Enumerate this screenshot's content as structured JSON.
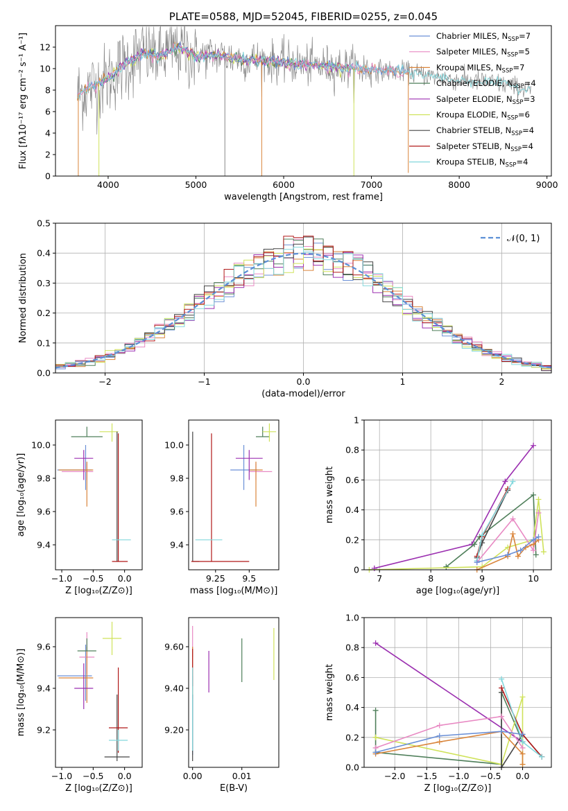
{
  "colors": {
    "chabrier_miles": "#6a8fd6",
    "salpeter_miles": "#e889c3",
    "kroupa_miles": "#d9843a",
    "chabrier_elodie": "#4f7f5a",
    "salpeter_elodie": "#9b2fb0",
    "kroupa_elodie": "#cfe25a",
    "chabrier_stelib": "#444444",
    "salpeter_stelib": "#b01818",
    "kroupa_stelib": "#82d7dc",
    "data_spectrum": "#888888",
    "normal_curve": "#5b8fd6"
  },
  "chart_data": [
    {
      "id": "spectrum",
      "type": "line",
      "title": "PLATE=0588, MJD=52045, FIBERID=0255, z=0.045",
      "xlabel": "wavelength [Angstrom, rest frame]",
      "ylabel": "Flux [fλ10⁻¹⁷ erg cm⁻² s⁻¹ A⁻¹]",
      "xlim": [
        3400,
        9050
      ],
      "ylim": [
        0,
        14
      ],
      "xticks": [
        4000,
        5000,
        6000,
        7000,
        8000,
        9000
      ],
      "yticks": [
        0,
        2,
        4,
        6,
        8,
        10,
        12
      ],
      "grid": false,
      "legend_position": "right",
      "legend": [
        "Chabrier MILES, N_SSP=7",
        "Salpeter MILES, N_SSP=5",
        "Kroupa MILES, N_SSP=7",
        "Chabrier ELODIE, N_SSP=4",
        "Salpeter ELODIE, N_SSP=3",
        "Kroupa ELODIE, N_SSP=6",
        "Chabrier STELIB, N_SSP=4",
        "Salpeter STELIB, N_SSP=4",
        "Kroupa STELIB, N_SSP=4"
      ],
      "continuum": [
        [
          3650,
          7.6
        ],
        [
          3800,
          8.2
        ],
        [
          4000,
          9.0
        ],
        [
          4200,
          10.5
        ],
        [
          4400,
          11.4
        ],
        [
          4600,
          11.2
        ],
        [
          4800,
          12.0
        ],
        [
          5000,
          11.1
        ],
        [
          5200,
          11.3
        ],
        [
          5500,
          10.9
        ],
        [
          6000,
          10.6
        ],
        [
          6300,
          10.3
        ],
        [
          6600,
          10.2
        ],
        [
          7000,
          9.9
        ],
        [
          7400,
          9.7
        ],
        [
          7700,
          9.3
        ],
        [
          8000,
          8.9
        ],
        [
          8300,
          8.8
        ],
        [
          8600,
          8.4
        ],
        [
          8800,
          8.0
        ]
      ],
      "data_range": [
        3650,
        8820
      ],
      "model_ranges": [
        {
          "series": "miles",
          "x": [
            3650,
            7420
          ]
        },
        {
          "series": "elodie",
          "x": [
            3900,
            6800
          ]
        },
        {
          "series": "stelib",
          "x": [
            3650,
            8820
          ]
        }
      ],
      "drops": [
        {
          "x": 3660,
          "y": 0.0
        },
        {
          "x": 3895,
          "y": 0.0
        },
        {
          "x": 5330,
          "y": 0.0
        },
        {
          "x": 5750,
          "y": 0.0
        },
        {
          "x": 6800,
          "y": 0.0
        },
        {
          "x": 7420,
          "y": 0.3
        }
      ]
    },
    {
      "id": "residuals",
      "type": "line",
      "xlabel": "(data-model)/error",
      "ylabel": "Normed distribution",
      "xlim": [
        -2.5,
        2.5
      ],
      "ylim": [
        0,
        0.5
      ],
      "xticks": [
        -2,
        -1,
        0,
        1,
        2
      ],
      "yticks": [
        0.0,
        0.1,
        0.2,
        0.3,
        0.4,
        0.5
      ],
      "grid": true,
      "legend_position": "top-right",
      "legend": [
        "𝒩(0, 1)"
      ],
      "bin_width": 0.1,
      "histograms_seed_mean": "standard normal"
    },
    {
      "id": "age_vs_Z",
      "type": "scatter",
      "xlabel": "Z [log₁₀(Z/Z⊙)]",
      "ylabel": "age  [log₁₀(age/yr)]",
      "xlim": [
        -1.1,
        0.28
      ],
      "ylim": [
        9.25,
        10.15
      ],
      "xticks": [
        -1.0,
        -0.5,
        0.0
      ],
      "yticks": [
        9.4,
        9.6,
        9.8,
        10.0
      ],
      "points": [
        {
          "s": "chabrier_miles",
          "x": -0.62,
          "y": 9.85,
          "xe": [
            0.45,
            0.1
          ],
          "ye": [
            0.12,
            0.15
          ]
        },
        {
          "s": "salpeter_miles",
          "x": -0.6,
          "y": 9.84,
          "xe": [
            0.4,
            0.1
          ],
          "ye": [
            0.05,
            0.05
          ]
        },
        {
          "s": "kroupa_miles",
          "x": -0.6,
          "y": 9.85,
          "xe": [
            0.45,
            0.1
          ],
          "ye": [
            0.22,
            0.05
          ]
        },
        {
          "s": "chabrier_elodie",
          "x": -0.6,
          "y": 10.05,
          "xe": [
            0.25,
            0.25
          ],
          "ye": [
            0.0,
            0.06
          ]
        },
        {
          "s": "salpeter_elodie",
          "x": -0.65,
          "y": 9.92,
          "xe": [
            0.15,
            0.15
          ],
          "ye": [
            0.13,
            0.05
          ]
        },
        {
          "s": "kroupa_elodie",
          "x": -0.2,
          "y": 10.08,
          "xe": [
            0.2,
            0.1
          ],
          "ye": [
            0.06,
            0.05
          ]
        },
        {
          "s": "chabrier_stelib",
          "x": -0.12,
          "y": 9.3,
          "xe": [
            0.0,
            0.0
          ],
          "ye": [
            0.0,
            0.78
          ]
        },
        {
          "s": "salpeter_stelib",
          "x": -0.1,
          "y": 9.3,
          "xe": [
            0.1,
            0.15
          ],
          "ye": [
            0.0,
            0.77
          ]
        },
        {
          "s": "kroupa_stelib",
          "x": -0.1,
          "y": 9.43,
          "xe": [
            0.1,
            0.2
          ],
          "ye": [
            0.0,
            0.0
          ]
        }
      ]
    },
    {
      "id": "age_vs_mass",
      "type": "scatter",
      "xlabel": "mass [log₁₀(M/M⊙)]",
      "ylabel": "",
      "xlim": [
        9.05,
        9.72
      ],
      "ylim": [
        9.25,
        10.15
      ],
      "xticks": [
        9.25,
        9.5
      ],
      "yticks": [
        9.4,
        9.6,
        9.8,
        10.0
      ],
      "points": [
        {
          "s": "chabrier_miles",
          "x": 9.46,
          "y": 9.85,
          "xe": [
            0.1,
            0.1
          ],
          "ye": [
            0.12,
            0.15
          ]
        },
        {
          "s": "salpeter_miles",
          "x": 9.55,
          "y": 9.84,
          "xe": [
            0.05,
            0.12
          ],
          "ye": [
            0.05,
            0.05
          ]
        },
        {
          "s": "kroupa_miles",
          "x": 9.55,
          "y": 9.85,
          "xe": [
            0.05,
            0.05
          ],
          "ye": [
            0.22,
            0.05
          ]
        },
        {
          "s": "chabrier_elodie",
          "x": 9.6,
          "y": 10.05,
          "xe": [
            0.05,
            0.05
          ],
          "ye": [
            0.0,
            0.06
          ]
        },
        {
          "s": "salpeter_elodie",
          "x": 9.5,
          "y": 9.92,
          "xe": [
            0.1,
            0.1
          ],
          "ye": [
            0.13,
            0.05
          ]
        },
        {
          "s": "kroupa_elodie",
          "x": 9.65,
          "y": 10.08,
          "xe": [
            0.05,
            0.05
          ],
          "ye": [
            0.06,
            0.05
          ]
        },
        {
          "s": "chabrier_stelib",
          "x": 9.08,
          "y": 9.3,
          "xe": [
            0.0,
            0.05
          ],
          "ye": [
            0.0,
            0.78
          ]
        },
        {
          "s": "salpeter_stelib",
          "x": 9.22,
          "y": 9.3,
          "xe": [
            0.15,
            0.28
          ],
          "ye": [
            0.0,
            0.77
          ]
        },
        {
          "s": "kroupa_stelib",
          "x": 9.15,
          "y": 9.43,
          "xe": [
            0.05,
            0.15
          ],
          "ye": [
            0.0,
            0.0
          ]
        }
      ]
    },
    {
      "id": "weight_vs_age",
      "type": "line",
      "xlabel": "age  [log₁₀(age/yr)]",
      "ylabel": "mass weight",
      "xlim": [
        6.7,
        10.35
      ],
      "ylim": [
        0,
        1
      ],
      "xticks": [
        7,
        8,
        9,
        10
      ],
      "yticks": [
        0.0,
        0.2,
        0.4,
        0.6,
        0.8,
        1.0
      ],
      "grid": true,
      "series": [
        {
          "s": "salpeter_elodie",
          "x": [
            6.9,
            8.8,
            9.45,
            10.0
          ],
          "y": [
            0.01,
            0.17,
            0.59,
            0.83
          ]
        },
        {
          "s": "chabrier_elodie",
          "x": [
            8.3,
            8.85,
            8.95,
            10.0,
            10.05
          ],
          "y": [
            0.02,
            0.17,
            0.22,
            0.5,
            0.1
          ]
        },
        {
          "s": "chabrier_stelib",
          "x": [
            8.9,
            9.0,
            9.5
          ],
          "y": [
            0.08,
            0.18,
            0.53
          ]
        },
        {
          "s": "salpeter_stelib",
          "x": [
            8.9,
            9.0,
            9.5
          ],
          "y": [
            0.09,
            0.22,
            0.54
          ]
        },
        {
          "s": "kroupa_stelib",
          "x": [
            8.9,
            9.0,
            9.6
          ],
          "y": [
            0.06,
            0.23,
            0.59
          ]
        },
        {
          "s": "kroupa_elodie",
          "x": [
            6.8,
            9.0,
            9.5,
            10.0,
            10.1,
            10.2
          ],
          "y": [
            0.0,
            0.02,
            0.15,
            0.2,
            0.47,
            0.12
          ]
        },
        {
          "s": "salpeter_miles",
          "x": [
            8.9,
            9.6,
            10.0,
            10.1
          ],
          "y": [
            0.05,
            0.34,
            0.13,
            0.38
          ]
        },
        {
          "s": "kroupa_miles",
          "x": [
            8.9,
            9.5,
            9.6,
            9.7,
            9.85,
            10.0,
            10.1
          ],
          "y": [
            0.0,
            0.09,
            0.24,
            0.09,
            0.15,
            0.17,
            0.2
          ]
        },
        {
          "s": "chabrier_miles",
          "x": [
            8.9,
            9.5,
            9.75,
            10.0,
            10.1
          ],
          "y": [
            0.05,
            0.1,
            0.13,
            0.2,
            0.22
          ]
        }
      ]
    },
    {
      "id": "mass_vs_Z",
      "type": "scatter",
      "xlabel": "Z [log₁₀(Z/Z⊙)]",
      "ylabel": "mass [log₁₀(M/M⊙)]",
      "xlim": [
        -1.1,
        0.28
      ],
      "ylim": [
        9.02,
        9.74
      ],
      "xticks": [
        -1.0,
        -0.5,
        0.0
      ],
      "yticks": [
        9.2,
        9.4,
        9.6
      ],
      "points": [
        {
          "s": "chabrier_miles",
          "x": -0.62,
          "y": 9.46,
          "xe": [
            0.45,
            0.1
          ],
          "ye": [
            0.12,
            0.15
          ]
        },
        {
          "s": "salpeter_miles",
          "x": -0.6,
          "y": 9.55,
          "xe": [
            0.12,
            0.12
          ],
          "ye": [
            0.08,
            0.12
          ]
        },
        {
          "s": "kroupa_miles",
          "x": -0.6,
          "y": 9.45,
          "xe": [
            0.45,
            0.1
          ],
          "ye": [
            0.12,
            0.15
          ]
        },
        {
          "s": "chabrier_elodie",
          "x": -0.6,
          "y": 9.58,
          "xe": [
            0.15,
            0.15
          ],
          "ye": [
            0.0,
            0.06
          ]
        },
        {
          "s": "salpeter_elodie",
          "x": -0.65,
          "y": 9.4,
          "xe": [
            0.15,
            0.15
          ],
          "ye": [
            0.1,
            0.12
          ]
        },
        {
          "s": "kroupa_elodie",
          "x": -0.2,
          "y": 9.64,
          "xe": [
            0.15,
            0.15
          ],
          "ye": [
            0.08,
            0.08
          ]
        },
        {
          "s": "chabrier_stelib",
          "x": -0.12,
          "y": 9.07,
          "xe": [
            0.2,
            0.2
          ],
          "ye": [
            0.02,
            0.3
          ]
        },
        {
          "s": "salpeter_stelib",
          "x": -0.1,
          "y": 9.21,
          "xe": [
            0.15,
            0.15
          ],
          "ye": [
            0.12,
            0.29
          ]
        },
        {
          "s": "kroupa_stelib",
          "x": -0.1,
          "y": 9.15,
          "xe": [
            0.15,
            0.15
          ],
          "ye": [
            0.05,
            0.05
          ]
        }
      ]
    },
    {
      "id": "mass_vs_ebv",
      "type": "scatter",
      "xlabel": "E(B-V)",
      "ylabel": "",
      "xlim": [
        -0.0008,
        0.0175
      ],
      "ylim": [
        9.02,
        9.74
      ],
      "xticks": [
        0.0,
        0.01
      ],
      "yticks": [
        9.2,
        9.4,
        9.6
      ],
      "points": [
        {
          "s": "chabrier_miles",
          "x": 0.0,
          "y": 9.46,
          "ye": [
            0.38,
            0.0
          ]
        },
        {
          "s": "salpeter_miles",
          "x": 0.0,
          "y": 9.55,
          "ye": [
            0.0,
            0.15
          ]
        },
        {
          "s": "kroupa_miles",
          "x": 0.0,
          "y": 9.45,
          "ye": [
            0.1,
            0.15
          ]
        },
        {
          "s": "chabrier_elodie",
          "x": 0.01,
          "y": 9.54,
          "ye": [
            0.11,
            0.1
          ]
        },
        {
          "s": "salpeter_elodie",
          "x": 0.0033,
          "y": 9.48,
          "ye": [
            0.1,
            0.1
          ]
        },
        {
          "s": "kroupa_elodie",
          "x": 0.0165,
          "y": 9.56,
          "ye": [
            0.12,
            0.13
          ]
        },
        {
          "s": "chabrier_stelib",
          "x": 0.0,
          "y": 9.07,
          "ye": [
            0.02,
            0.3
          ]
        },
        {
          "s": "salpeter_stelib",
          "x": 0.0,
          "y": 9.5,
          "ye": [
            0.09,
            0.09
          ]
        },
        {
          "s": "kroupa_stelib",
          "x": 0.0,
          "y": 9.3,
          "ye": [
            0.2,
            0.2
          ]
        }
      ]
    },
    {
      "id": "weight_vs_Z",
      "type": "line",
      "xlabel": "Z [log₁₀(Z/Z⊙)]",
      "ylabel": "mass weight",
      "xlim": [
        -2.48,
        0.45
      ],
      "ylim": [
        0,
        1
      ],
      "xticks": [
        -2.0,
        -1.5,
        -1.0,
        -0.5,
        0.0
      ],
      "yticks": [
        0.0,
        0.2,
        0.4,
        0.6,
        0.8,
        1.0
      ],
      "grid": true,
      "series": [
        {
          "s": "salpeter_elodie",
          "x": [
            -2.3,
            0.0,
            0.0
          ],
          "y": [
            0.83,
            0.17,
            0.17
          ]
        },
        {
          "s": "chabrier_elodie",
          "x": [
            -2.3,
            -2.3,
            -0.33,
            -0.33,
            0.0
          ],
          "y": [
            0.38,
            0.1,
            0.02,
            0.5,
            0.17
          ]
        },
        {
          "s": "kroupa_elodie",
          "x": [
            -2.3,
            -2.3,
            -0.33,
            0.0,
            0.0
          ],
          "y": [
            0.2,
            0.2,
            0.02,
            0.47,
            0.02
          ]
        },
        {
          "s": "chabrier_stelib",
          "x": [
            -0.33,
            -0.33,
            0.0,
            0.3
          ],
          "y": [
            0.5,
            0.0,
            0.22,
            0.07
          ]
        },
        {
          "s": "salpeter_stelib",
          "x": [
            -0.33,
            0.0,
            0.3
          ],
          "y": [
            0.53,
            0.22,
            0.07
          ]
        },
        {
          "s": "kroupa_stelib",
          "x": [
            -0.33,
            0.0,
            0.3
          ],
          "y": [
            0.59,
            0.17,
            0.07
          ]
        },
        {
          "s": "salpeter_miles",
          "x": [
            -2.3,
            -1.3,
            -0.33,
            0.0
          ],
          "y": [
            0.13,
            0.28,
            0.34,
            0.13
          ]
        },
        {
          "s": "kroupa_miles",
          "x": [
            -2.3,
            -1.3,
            -0.33,
            0.0,
            0.0
          ],
          "y": [
            0.09,
            0.17,
            0.24,
            0.09,
            0.02
          ]
        },
        {
          "s": "chabrier_miles",
          "x": [
            -2.3,
            -1.3,
            -0.33,
            0.0
          ],
          "y": [
            0.1,
            0.21,
            0.24,
            0.22
          ]
        }
      ]
    }
  ]
}
